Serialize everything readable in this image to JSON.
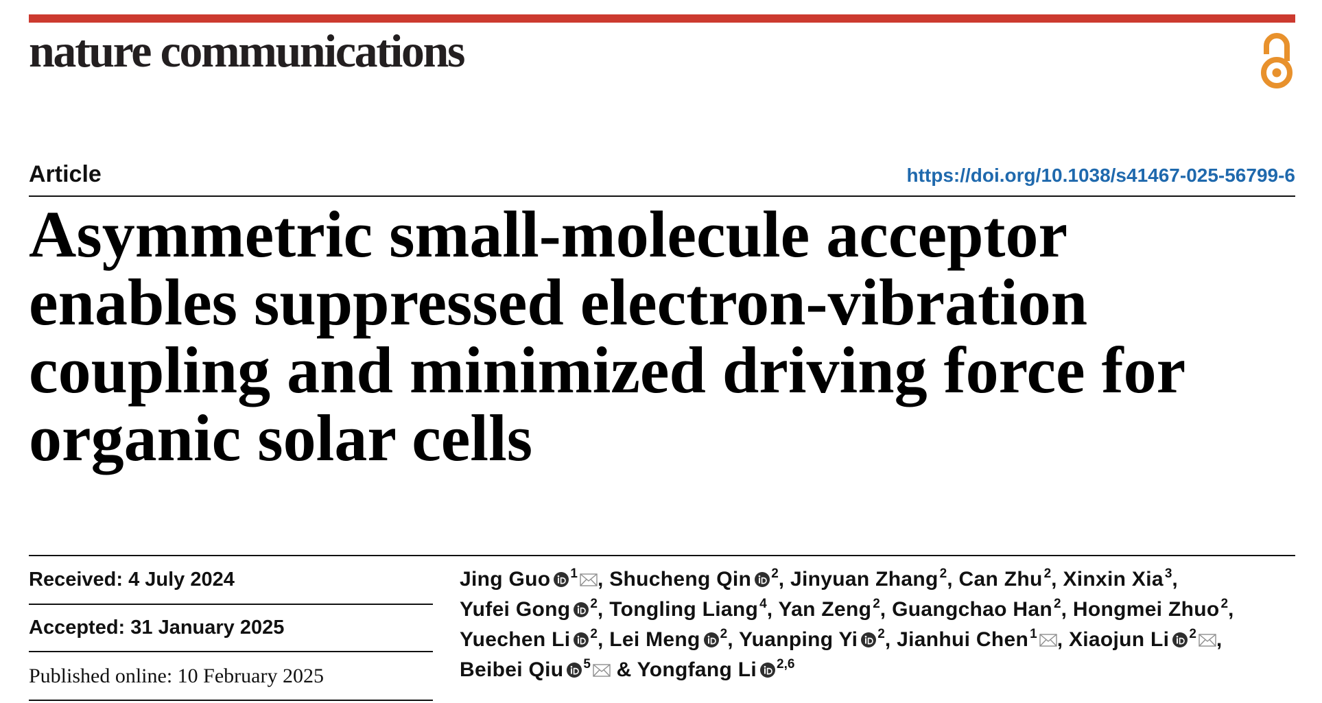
{
  "journal": {
    "name": "nature communications"
  },
  "colors": {
    "brand_bar": "#cc3a2f",
    "text": "#111111",
    "doi_link": "#1f69ad",
    "open_access_icon": "#e8912c",
    "orcid_icon": "#2e2e2e",
    "email_icon": "#8e8e8e"
  },
  "icons": {
    "open_access": "open-access-icon",
    "orcid": "orcid-icon",
    "email": "envelope-icon"
  },
  "article": {
    "type": "Article",
    "doi": "https://doi.org/10.1038/s41467-025-56799-6",
    "title": "Asymmetric small-molecule acceptor enables suppressed electron-vibration coupling and minimized driving force for organic solar cells",
    "dates": {
      "received": "Received: 4 July 2024",
      "accepted": "Accepted: 31 January 2025",
      "published": "Published online: 10 February 2025"
    },
    "author_lines": [
      [
        {
          "name": "Jing Guo",
          "orcid": true,
          "affiliation": "1",
          "email": true,
          "separator": ", "
        },
        {
          "name": "Shucheng Qin",
          "orcid": true,
          "affiliation": "2",
          "email": false,
          "separator": ", "
        },
        {
          "name": "Jinyuan Zhang",
          "orcid": false,
          "affiliation": "2",
          "email": false,
          "separator": ", "
        },
        {
          "name": "Can Zhu",
          "orcid": false,
          "affiliation": "2",
          "email": false,
          "separator": ", "
        },
        {
          "name": "Xinxin Xia",
          "orcid": false,
          "affiliation": "3",
          "email": false,
          "separator": ","
        }
      ],
      [
        {
          "name": "Yufei Gong",
          "orcid": true,
          "affiliation": "2",
          "email": false,
          "separator": ", "
        },
        {
          "name": "Tongling Liang",
          "orcid": false,
          "affiliation": "4",
          "email": false,
          "separator": ", "
        },
        {
          "name": "Yan Zeng",
          "orcid": false,
          "affiliation": "2",
          "email": false,
          "separator": ", "
        },
        {
          "name": "Guangchao Han",
          "orcid": false,
          "affiliation": "2",
          "email": false,
          "separator": ", "
        },
        {
          "name": "Hongmei Zhuo",
          "orcid": false,
          "affiliation": "2",
          "email": false,
          "separator": ","
        }
      ],
      [
        {
          "name": "Yuechen Li",
          "orcid": true,
          "affiliation": "2",
          "email": false,
          "separator": ", "
        },
        {
          "name": "Lei Meng",
          "orcid": true,
          "affiliation": "2",
          "email": false,
          "separator": ", "
        },
        {
          "name": "Yuanping Yi",
          "orcid": true,
          "affiliation": "2",
          "email": false,
          "separator": ", "
        },
        {
          "name": "Jianhui Chen",
          "orcid": false,
          "affiliation": "1",
          "email": true,
          "separator": ", "
        },
        {
          "name": "Xiaojun Li",
          "orcid": true,
          "affiliation": "2",
          "email": true,
          "separator": ","
        }
      ],
      [
        {
          "name": "Beibei Qiu",
          "orcid": true,
          "affiliation": "5",
          "email": true,
          "separator": " & "
        },
        {
          "name": "Yongfang Li",
          "orcid": true,
          "affiliation": "2,6",
          "email": false,
          "separator": ""
        }
      ]
    ]
  }
}
